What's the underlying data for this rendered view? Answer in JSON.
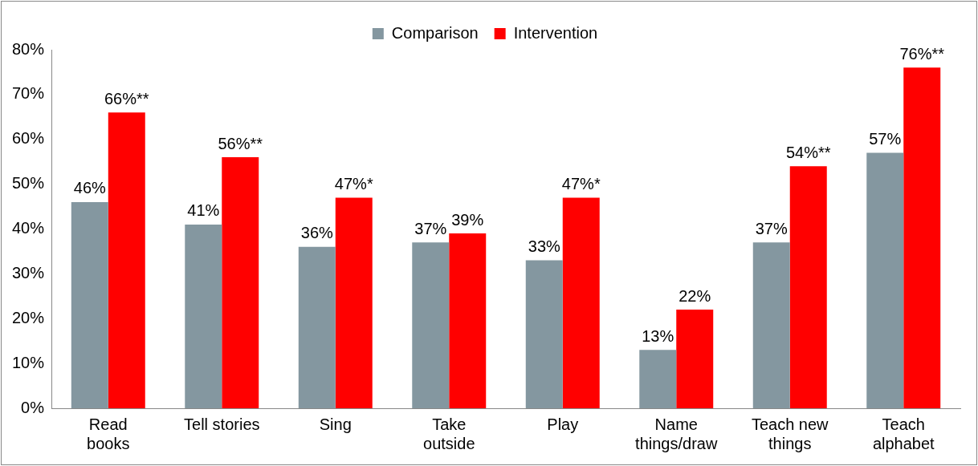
{
  "chart_data": {
    "type": "bar",
    "categories": [
      "Read books",
      "Tell stories",
      "Sing",
      "Take outside",
      "Play",
      "Name things/draw",
      "Teach new things",
      "Teach alphabet"
    ],
    "series": [
      {
        "name": "Comparison",
        "color": "#8497a0",
        "values": [
          46,
          41,
          36,
          37,
          33,
          13,
          37,
          57
        ],
        "value_labels": [
          "46%",
          "41%",
          "36%",
          "37%",
          "33%",
          "13%",
          "37%",
          "57%"
        ]
      },
      {
        "name": "Intervention",
        "color": "#ff0000",
        "values": [
          66,
          56,
          47,
          39,
          47,
          22,
          54,
          76
        ],
        "value_labels": [
          "66%**",
          "56%**",
          "47%*",
          "39%",
          "47%*",
          "22%",
          "54%**",
          "76%**"
        ]
      }
    ],
    "ylim": [
      0,
      80
    ],
    "yticks": [
      {
        "value": 0,
        "label": "0%"
      },
      {
        "value": 10,
        "label": "10%"
      },
      {
        "value": 20,
        "label": "20%"
      },
      {
        "value": 30,
        "label": "30%"
      },
      {
        "value": 40,
        "label": "40%"
      },
      {
        "value": 50,
        "label": "50%"
      },
      {
        "value": 60,
        "label": "60%"
      },
      {
        "value": 70,
        "label": "70%"
      },
      {
        "value": 80,
        "label": "80%"
      }
    ],
    "grid": false,
    "legend": "top"
  }
}
